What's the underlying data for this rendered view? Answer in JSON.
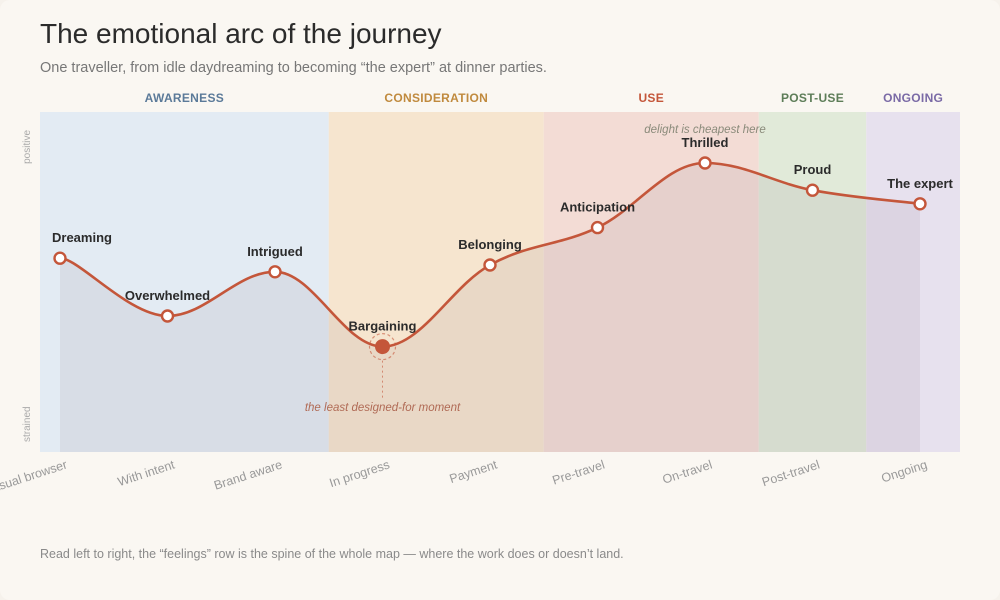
{
  "title": "The emotional arc of the journey",
  "subtitle": "One traveller, from idle daydreaming to becoming “the expert” at dinner parties.",
  "footnote": "Read left to right, the “feelings” row is the spine of the whole map — where the work does or doesn’t land.",
  "colors": {
    "line": "#c4563a",
    "area": "#8c7f8c",
    "awareness_band": "#e3ebf3",
    "consideration_band": "#f6e5cf",
    "use_band": "#f3dcd5",
    "postuse_band": "#e1ead9",
    "ongoing_band": "#e7e1ee"
  },
  "chart_data": {
    "type": "line",
    "title": "The emotional arc of the journey",
    "y_axis": {
      "top_label": "positive",
      "bottom_label": "strained"
    },
    "stages": [
      {
        "name": "AWARENESS",
        "color": "#5b7a99",
        "from": 0,
        "to": 2
      },
      {
        "name": "CONSIDERATION",
        "color": "#c08a3e",
        "from": 3,
        "to": 4
      },
      {
        "name": "USE",
        "color": "#c4563a",
        "from": 5,
        "to": 6
      },
      {
        "name": "POST-USE",
        "color": "#5d7d58",
        "from": 7,
        "to": 7
      },
      {
        "name": "ONGOING",
        "color": "#7a6aa6",
        "from": 8,
        "to": 8
      }
    ],
    "categories": [
      "Casual browser",
      "With intent",
      "Brand aware",
      "In progress",
      "Payment",
      "Pre-travel",
      "On-travel",
      "Post-travel",
      "Ongoing"
    ],
    "points": [
      {
        "label": "Dreaming",
        "value": 0.57
      },
      {
        "label": "Overwhelmed",
        "value": 0.4
      },
      {
        "label": "Intrigued",
        "value": 0.53
      },
      {
        "label": "Bargaining",
        "value": 0.31,
        "highlight": true
      },
      {
        "label": "Belonging",
        "value": 0.55
      },
      {
        "label": "Anticipation",
        "value": 0.66
      },
      {
        "label": "Thrilled",
        "value": 0.85
      },
      {
        "label": "Proud",
        "value": 0.77
      },
      {
        "label": "The expert",
        "value": 0.73
      }
    ],
    "annotations": [
      {
        "text": "the least designed-for moment",
        "point": 3
      },
      {
        "text": "delight is cheapest here",
        "point": 6
      }
    ]
  }
}
